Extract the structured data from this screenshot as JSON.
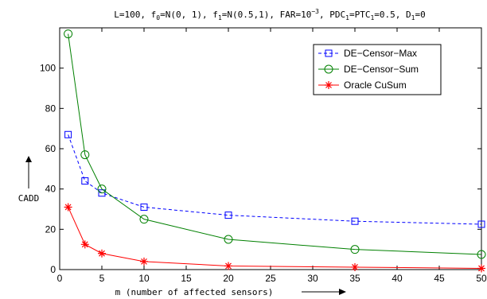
{
  "chart_data": {
    "type": "line",
    "title": {
      "parts": [
        {
          "text": "L=100, f",
          "sub": false,
          "sup": false
        },
        {
          "text": "0",
          "sub": true,
          "sup": false
        },
        {
          "text": "=N(0, 1), f",
          "sub": false,
          "sup": false
        },
        {
          "text": "1",
          "sub": true,
          "sup": false
        },
        {
          "text": "=N(0.5,1), FAR=10",
          "sub": false,
          "sup": false
        },
        {
          "text": "−3",
          "sub": false,
          "sup": true
        },
        {
          "text": ", PDC",
          "sub": false,
          "sup": false
        },
        {
          "text": "1",
          "sub": true,
          "sup": false
        },
        {
          "text": "=PTC",
          "sub": false,
          "sup": false
        },
        {
          "text": "1",
          "sub": true,
          "sup": false
        },
        {
          "text": "=0.5, D",
          "sub": false,
          "sup": false
        },
        {
          "text": "1",
          "sub": true,
          "sup": false
        },
        {
          "text": "=0",
          "sub": false,
          "sup": false
        }
      ]
    },
    "xlabel": "m (number of affected sensors)",
    "ylabel": "CADD",
    "xlim": [
      0,
      50
    ],
    "ylim": [
      0,
      120
    ],
    "xticks": [
      0,
      5,
      10,
      15,
      20,
      25,
      30,
      35,
      40,
      45,
      50
    ],
    "yticks": [
      0,
      20,
      40,
      60,
      80,
      100
    ],
    "grid": false,
    "legend_position": "top-right",
    "x": [
      1,
      3,
      5,
      10,
      20,
      35,
      50
    ],
    "series": [
      {
        "name": "DE−Censor−Max",
        "values": [
          67,
          44,
          38,
          31,
          27,
          24,
          22.5
        ],
        "color": "#0000ff",
        "line": "dashed",
        "marker": "square"
      },
      {
        "name": "DE−Censor−Sum",
        "values": [
          117,
          57,
          40,
          25,
          15,
          10,
          7.5
        ],
        "color": "#008000",
        "line": "solid",
        "marker": "circle"
      },
      {
        "name": "Oracle CuSum",
        "values": [
          31,
          12.5,
          8,
          4,
          1.8,
          1.2,
          0.6
        ],
        "color": "#ff0000",
        "line": "solid",
        "marker": "star"
      }
    ]
  }
}
